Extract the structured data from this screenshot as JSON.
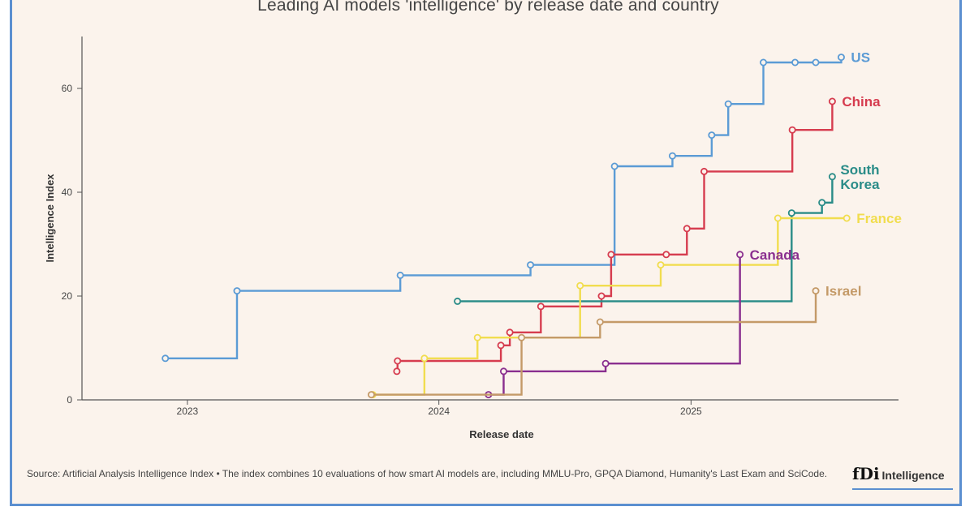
{
  "chart_data": {
    "type": "line",
    "step": true,
    "title": "Leading AI models 'intelligence' by release date and country",
    "xlabel": "Release date",
    "ylabel": "Intelligence Index",
    "x_tick_labels": [
      "2023",
      "2024",
      "2025"
    ],
    "y_ticks": [
      0,
      20,
      40,
      60
    ],
    "xlim": [
      "2022-08-01",
      "2025-10-15"
    ],
    "ylim": [
      0,
      70
    ],
    "grid": false,
    "legend": "inline labels at line ends",
    "series": [
      {
        "name": "US",
        "color": "#5b9bd5",
        "x": [
          "2022-11-30",
          "2023-03-14",
          "2023-11-06",
          "2024-05-13",
          "2024-09-12",
          "2024-12-05",
          "2025-01-31",
          "2025-02-24",
          "2025-04-16",
          "2025-06-01",
          "2025-07-01",
          "2025-08-07"
        ],
        "y": [
          8,
          21,
          24,
          26,
          45,
          47,
          51,
          57,
          65,
          65,
          65,
          66
        ]
      },
      {
        "name": "China",
        "color": "#d63c4f",
        "x": [
          "2023-11-01",
          "2023-11-02",
          "2024-03-31",
          "2024-04-13",
          "2024-05-28",
          "2024-08-24",
          "2024-09-07",
          "2024-11-26",
          "2024-12-26",
          "2025-01-20",
          "2025-05-28",
          "2025-07-25"
        ],
        "y": [
          5.5,
          7.5,
          10.5,
          13,
          18,
          20,
          28,
          28,
          33,
          44,
          52,
          57.5
        ]
      },
      {
        "name": "South Korea",
        "color": "#2a8c88",
        "x": [
          "2024-01-28",
          "2025-05-27",
          "2025-07-10",
          "2025-07-25"
        ],
        "y": [
          19,
          36,
          38,
          43
        ]
      },
      {
        "name": "France",
        "color": "#f1dd4f",
        "x": [
          "2023-09-27",
          "2023-12-11",
          "2024-02-26",
          "2024-07-24",
          "2024-11-18",
          "2025-05-07",
          "2025-08-15"
        ],
        "y": [
          1,
          8,
          12,
          22,
          26,
          35,
          35
        ]
      },
      {
        "name": "Canada",
        "color": "#8a2f8f",
        "x": [
          "2024-03-13",
          "2024-04-04",
          "2024-08-30",
          "2025-03-13"
        ],
        "y": [
          1,
          5.5,
          7,
          28
        ]
      },
      {
        "name": "Israel",
        "color": "#c49a68",
        "x": [
          "2023-09-25",
          "2024-04-30",
          "2024-08-22",
          "2025-07-01"
        ],
        "y": [
          1,
          12,
          15,
          21
        ]
      }
    ]
  },
  "footer": {
    "source": "Source: Artificial Analysis Intelligence Index • The index combines 10 evaluations of how smart AI models are, including MMLU-Pro, GPQA Diamond, Humanity's Last Exam and SciCode.",
    "logo_mark": "fDi",
    "logo_text": "Intelligence"
  }
}
